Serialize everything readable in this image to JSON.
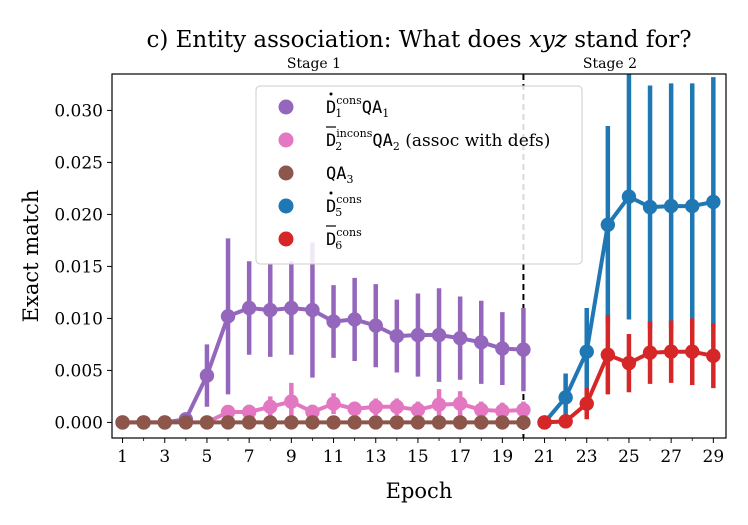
{
  "chart_data": {
    "type": "line",
    "title_prefix": "c) Entity association: What does ",
    "title_var": "xyz",
    "title_suffix": " stand for?",
    "title": "c) Entity association: What does xyz stand for?",
    "xlabel": "Epoch",
    "ylabel": "Exact match",
    "xlim": [
      0.5,
      29.6
    ],
    "ylim": [
      -0.0015,
      0.0335
    ],
    "xticks": [
      1,
      3,
      5,
      7,
      9,
      11,
      13,
      15,
      17,
      19,
      21,
      23,
      25,
      27,
      29
    ],
    "yticks": [
      0.0,
      0.005,
      0.01,
      0.015,
      0.02,
      0.025,
      0.03
    ],
    "ytick_labels": [
      "0.000",
      "0.005",
      "0.010",
      "0.015",
      "0.020",
      "0.025",
      "0.030"
    ],
    "stage_divider_x": 20,
    "stage_labels": [
      "Stage 1",
      "Stage 2"
    ],
    "legend_position": "upper-center",
    "series": [
      {
        "name": "Ḋ1cons QA1",
        "legend": {
          "base": "D",
          "accent": "dot",
          "sup": "cons",
          "sub": "1",
          "tail": "QA",
          "tail_sub": "1",
          "extra": ""
        },
        "color": "#9467bd",
        "x": [
          1,
          2,
          3,
          4,
          5,
          6,
          7,
          8,
          9,
          10,
          11,
          12,
          13,
          14,
          15,
          16,
          17,
          18,
          19,
          20
        ],
        "y": [
          0,
          0,
          0,
          0.0003,
          0.0045,
          0.0102,
          0.011,
          0.0108,
          0.011,
          0.0108,
          0.0097,
          0.0099,
          0.0093,
          0.0083,
          0.0084,
          0.0084,
          0.0081,
          0.0077,
          0.0071,
          0.007
        ],
        "err": [
          0,
          0,
          0,
          0,
          0.003,
          0.0075,
          0.0045,
          0.0045,
          0.0045,
          0.0065,
          0.0035,
          0.004,
          0.004,
          0.0035,
          0.004,
          0.0045,
          0.004,
          0.004,
          0.0035,
          0.004
        ]
      },
      {
        "name": "D̄2incons QA2 (assoc with defs)",
        "legend": {
          "base": "D",
          "accent": "bar",
          "sup": "incons",
          "sub": "2",
          "tail": "QA",
          "tail_sub": "2",
          "extra": " (assoc with defs)"
        },
        "color": "#e377c2",
        "x": [
          5,
          6,
          7,
          8,
          9,
          10,
          11,
          12,
          13,
          14,
          15,
          16,
          17,
          18,
          19,
          20
        ],
        "y": [
          0,
          0.001,
          0.001,
          0.0015,
          0.002,
          0.001,
          0.0018,
          0.0013,
          0.0015,
          0.0015,
          0.0012,
          0.0017,
          0.0018,
          0.0012,
          0.0011,
          0.0012
        ],
        "err": [
          0,
          0.0005,
          0.0007,
          0.001,
          0.0018,
          0.0007,
          0.001,
          0.0007,
          0.0008,
          0.0008,
          0.0008,
          0.0015,
          0.0012,
          0.0008,
          0.0008,
          0.0008
        ]
      },
      {
        "name": "QA3",
        "legend": {
          "base": "",
          "accent": "",
          "sup": "",
          "sub": "",
          "tail": "QA",
          "tail_sub": "3",
          "extra": ""
        },
        "color": "#8c564b",
        "x": [
          1,
          2,
          3,
          4,
          5,
          6,
          7,
          8,
          9,
          10,
          11,
          12,
          13,
          14,
          15,
          16,
          17,
          18,
          19,
          20
        ],
        "y": [
          0,
          0,
          0,
          0,
          0,
          0,
          0,
          0,
          0,
          0,
          0,
          0,
          0,
          0,
          0,
          0,
          0,
          0,
          0,
          0
        ],
        "err": [
          0,
          0,
          0,
          0,
          0,
          0,
          0,
          0,
          0,
          0,
          0,
          0,
          0,
          0,
          0,
          0,
          0,
          0,
          0,
          0
        ]
      },
      {
        "name": "Ḋ5cons",
        "legend": {
          "base": "D",
          "accent": "dot",
          "sup": "cons",
          "sub": "5",
          "tail": "",
          "tail_sub": "",
          "extra": ""
        },
        "color": "#1f77b4",
        "x": [
          21,
          22,
          23,
          24,
          25,
          26,
          27,
          28,
          29
        ],
        "y": [
          0,
          0.0024,
          0.0068,
          0.019,
          0.0217,
          0.0207,
          0.0208,
          0.0208,
          0.0212
        ],
        "err": [
          0,
          0.0023,
          0.0042,
          0.0095,
          0.0118,
          0.0117,
          0.0118,
          0.0118,
          0.012
        ]
      },
      {
        "name": "D̄6cons",
        "legend": {
          "base": "D",
          "accent": "bar",
          "sup": "cons",
          "sub": "6",
          "tail": "",
          "tail_sub": "",
          "extra": ""
        },
        "color": "#d62728",
        "x": [
          21,
          22,
          23,
          24,
          25,
          26,
          27,
          28,
          29
        ],
        "y": [
          0,
          0.0001,
          0.0018,
          0.0065,
          0.0057,
          0.0067,
          0.0068,
          0.0068,
          0.0064
        ],
        "err": [
          0,
          0,
          0.0015,
          0.0038,
          0.0028,
          0.003,
          0.003,
          0.0032,
          0.0031
        ]
      }
    ]
  }
}
